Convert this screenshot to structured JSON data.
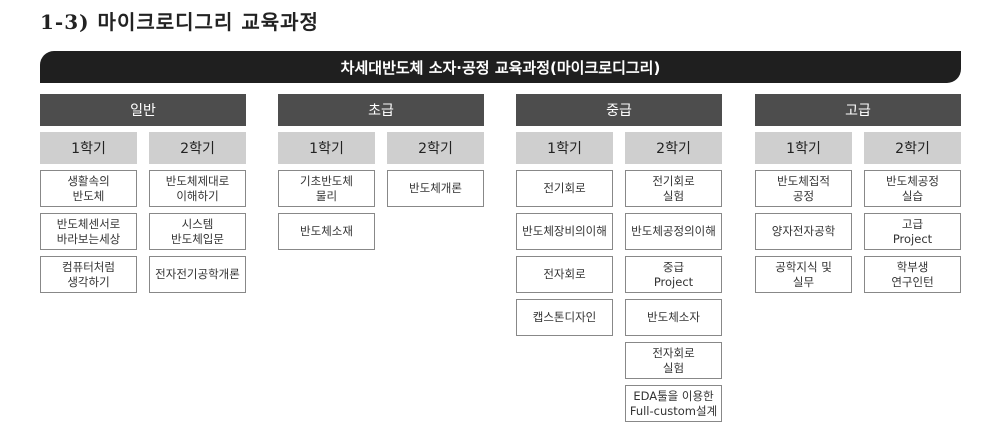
{
  "title": "1-3) 마이크로디그리 교육과정",
  "banner": "차세대반도체 소자·공정 교육과정(마이크로디그리)",
  "levels": [
    {
      "name": "일반",
      "semesters": [
        {
          "label": "1학기",
          "courses": [
            "생활속의\n반도체",
            "반도체센서로\n바라보는세상",
            "컴퓨터처럼\n생각하기"
          ]
        },
        {
          "label": "2학기",
          "courses": [
            "반도체제대로\n이해하기",
            "시스템\n반도체입문",
            "전자전기공학개론"
          ]
        }
      ]
    },
    {
      "name": "초급",
      "semesters": [
        {
          "label": "1학기",
          "courses": [
            "기초반도체\n물리",
            "반도체소재"
          ]
        },
        {
          "label": "2학기",
          "courses": [
            "반도체개론"
          ]
        }
      ]
    },
    {
      "name": "중급",
      "semesters": [
        {
          "label": "1학기",
          "courses": [
            "전기회로",
            "반도체장비의이해",
            "전자회로",
            "캡스톤디자인"
          ]
        },
        {
          "label": "2학기",
          "courses": [
            "전기회로\n실험",
            "반도체공정의이해",
            "중급\nProject",
            "반도체소자",
            "전자회로\n실험",
            "EDA툴을 이용한\nFull-custom설계"
          ]
        }
      ]
    },
    {
      "name": "고급",
      "semesters": [
        {
          "label": "1학기",
          "courses": [
            "반도체집적\n공정",
            "양자전자공학",
            "공학지식 및\n실무"
          ]
        },
        {
          "label": "2학기",
          "courses": [
            "반도체공정\n실습",
            "고급\nProject",
            "학부생\n연구인턴"
          ]
        }
      ]
    }
  ]
}
